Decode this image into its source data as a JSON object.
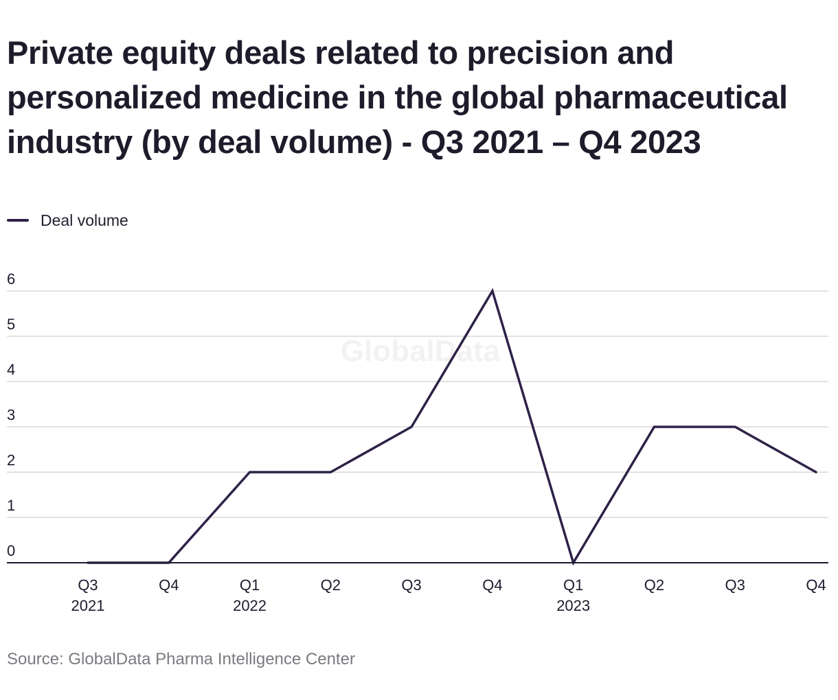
{
  "header": {
    "title": "Private equity deals related to precision and personalized medicine in the global pharmaceutical industry (by deal volume) - Q3 2021 – Q4 2023"
  },
  "legend": {
    "label": "Deal volume"
  },
  "watermark": "GlobalData",
  "source": "Source: GlobalData Pharma Intelligence Center",
  "colors": {
    "line": "#2e2148",
    "grid": "#d9d9d9",
    "axis": "#1b1b2e",
    "watermark": "#f2f2f2"
  },
  "chart_data": {
    "type": "line",
    "title": "Private equity deals related to precision and personalized medicine in the global pharmaceutical industry (by deal volume) - Q3 2021 – Q4 2023",
    "xlabel": "",
    "ylabel": "",
    "categories": [
      [
        "Q3",
        "2021"
      ],
      [
        "Q4",
        ""
      ],
      [
        "Q1",
        "2022"
      ],
      [
        "Q2",
        ""
      ],
      [
        "Q3",
        ""
      ],
      [
        "Q4",
        ""
      ],
      [
        "Q1",
        "2023"
      ],
      [
        "Q2",
        ""
      ],
      [
        "Q3",
        ""
      ],
      [
        "Q4",
        ""
      ]
    ],
    "series": [
      {
        "name": "Deal volume",
        "values": [
          0,
          0,
          2,
          2,
          3,
          6,
          0,
          3,
          3,
          2
        ]
      }
    ],
    "ylim": [
      0,
      6
    ],
    "yticks": [
      0,
      1,
      2,
      3,
      4,
      5,
      6
    ],
    "grid": true,
    "legend_position": "top-left"
  }
}
